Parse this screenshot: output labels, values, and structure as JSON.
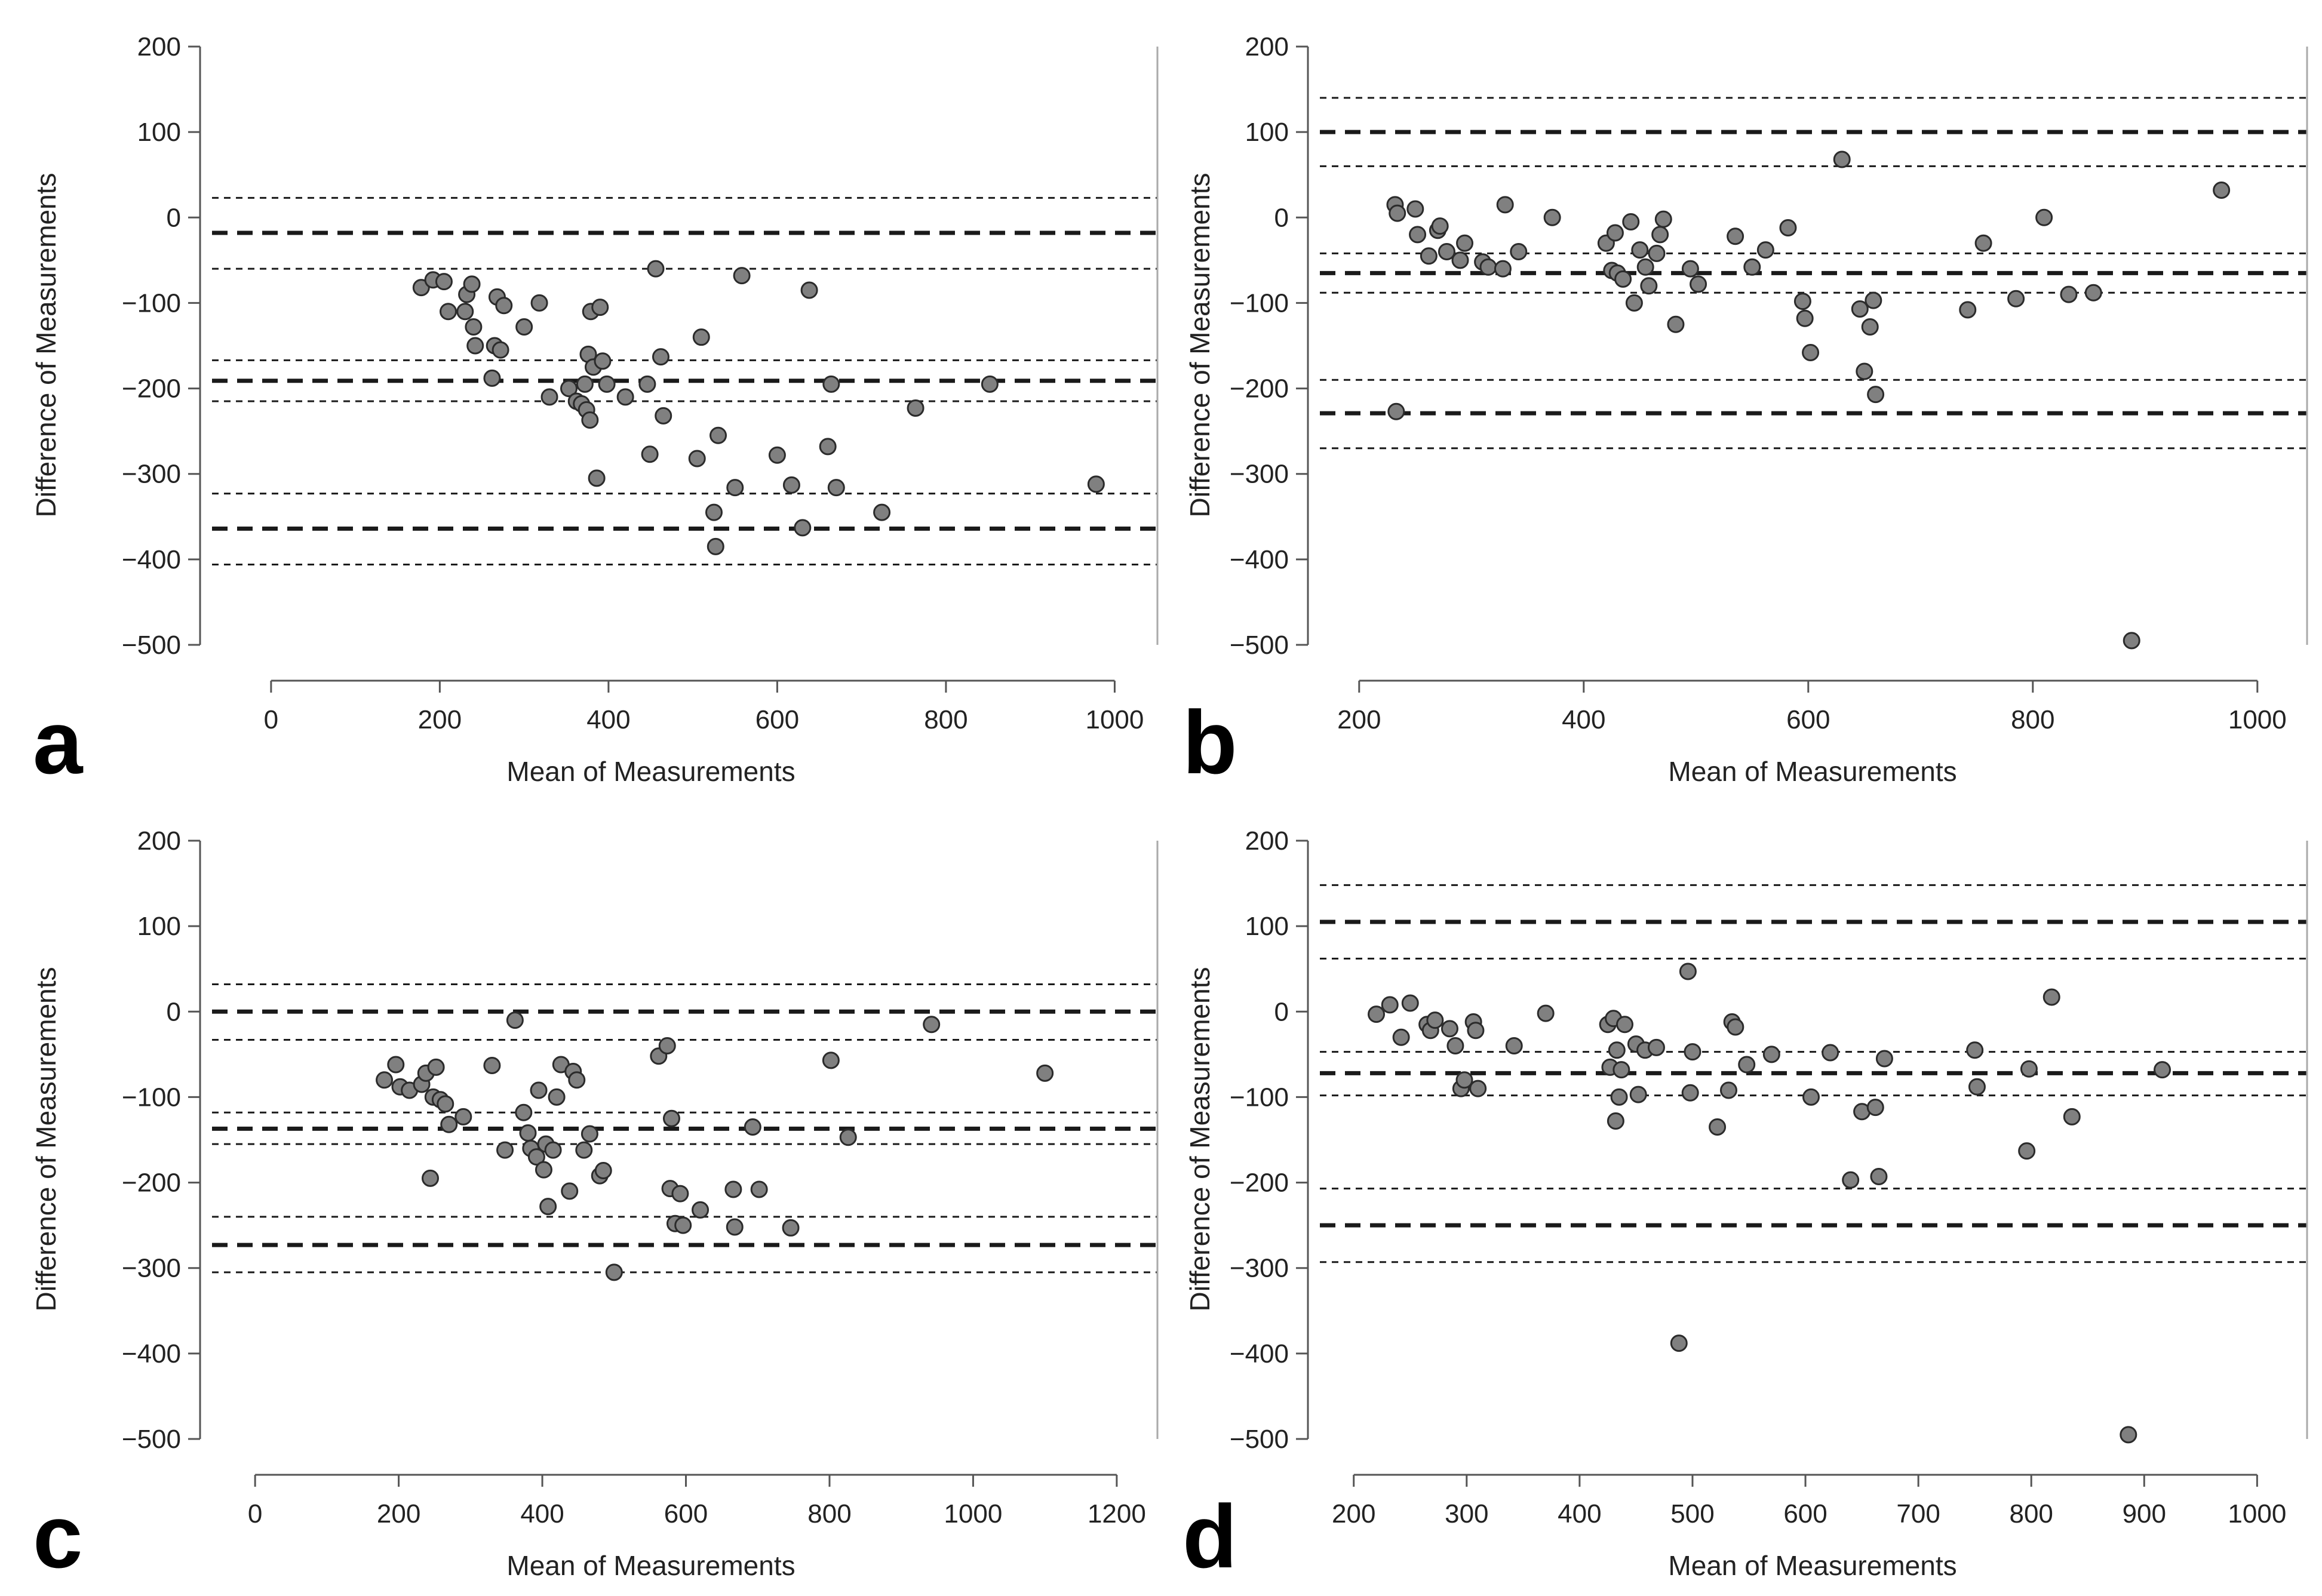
{
  "figure": {
    "background": "#ffffff",
    "point_color": "#808080",
    "line_color": "#1a1a1a"
  },
  "chart_data": [
    {
      "panel": "a",
      "type": "scatter",
      "xlabel": "Mean of Measurements",
      "ylabel": "Difference of Measurements",
      "xlim": [
        -70,
        1045
      ],
      "ylim": [
        -500,
        200
      ],
      "xticks": [
        0,
        200,
        400,
        600,
        800,
        1000
      ],
      "yticks": [
        200,
        100,
        0,
        -100,
        -200,
        -300,
        -400,
        -500
      ],
      "lines": [
        {
          "y": 23,
          "style": "dotted"
        },
        {
          "y": -18,
          "style": "dashed"
        },
        {
          "y": -60,
          "style": "dotted"
        },
        {
          "y": -167,
          "style": "dotted"
        },
        {
          "y": -191,
          "style": "dashed"
        },
        {
          "y": -215,
          "style": "dotted"
        },
        {
          "y": -323,
          "style": "dotted"
        },
        {
          "y": -364,
          "style": "dashed"
        },
        {
          "y": -406,
          "style": "dotted"
        }
      ],
      "points": [
        [
          178,
          -82
        ],
        [
          192,
          -73
        ],
        [
          205,
          -75
        ],
        [
          210,
          -110
        ],
        [
          230,
          -110
        ],
        [
          232,
          -90
        ],
        [
          238,
          -78
        ],
        [
          240,
          -128
        ],
        [
          242,
          -150
        ],
        [
          262,
          -188
        ],
        [
          265,
          -150
        ],
        [
          268,
          -93
        ],
        [
          272,
          -155
        ],
        [
          276,
          -103
        ],
        [
          300,
          -128
        ],
        [
          318,
          -100
        ],
        [
          330,
          -210
        ],
        [
          353,
          -200
        ],
        [
          362,
          -215
        ],
        [
          368,
          -218
        ],
        [
          372,
          -195
        ],
        [
          374,
          -225
        ],
        [
          376,
          -160
        ],
        [
          378,
          -237
        ],
        [
          379,
          -110
        ],
        [
          382,
          -175
        ],
        [
          386,
          -305
        ],
        [
          390,
          -105
        ],
        [
          393,
          -168
        ],
        [
          398,
          -195
        ],
        [
          420,
          -210
        ],
        [
          446,
          -195
        ],
        [
          449,
          -277
        ],
        [
          456,
          -60
        ],
        [
          462,
          -163
        ],
        [
          465,
          -232
        ],
        [
          505,
          -282
        ],
        [
          510,
          -140
        ],
        [
          525,
          -345
        ],
        [
          527,
          -385
        ],
        [
          530,
          -255
        ],
        [
          550,
          -316
        ],
        [
          558,
          -68
        ],
        [
          600,
          -278
        ],
        [
          617,
          -313
        ],
        [
          630,
          -363
        ],
        [
          638,
          -85
        ],
        [
          660,
          -268
        ],
        [
          664,
          -195
        ],
        [
          670,
          -316
        ],
        [
          724,
          -345
        ],
        [
          764,
          -223
        ],
        [
          852,
          -195
        ],
        [
          978,
          -312
        ]
      ]
    },
    {
      "panel": "b",
      "type": "scatter",
      "xlabel": "Mean of Measurements",
      "ylabel": "Difference of Measurements",
      "xlim": [
        165,
        1040
      ],
      "ylim": [
        -500,
        200
      ],
      "xticks": [
        200,
        400,
        600,
        800,
        1000
      ],
      "yticks": [
        200,
        100,
        0,
        -100,
        -200,
        -300,
        -400,
        -500
      ],
      "lines": [
        {
          "y": 140,
          "style": "dotted"
        },
        {
          "y": 100,
          "style": "dashed"
        },
        {
          "y": 60,
          "style": "dotted"
        },
        {
          "y": -42,
          "style": "dotted"
        },
        {
          "y": -65,
          "style": "dashed"
        },
        {
          "y": -88,
          "style": "dotted"
        },
        {
          "y": -190,
          "style": "dotted"
        },
        {
          "y": -229,
          "style": "dashed"
        },
        {
          "y": -270,
          "style": "dotted"
        }
      ],
      "points": [
        [
          232,
          15
        ],
        [
          234,
          5
        ],
        [
          233,
          -227
        ],
        [
          250,
          10
        ],
        [
          252,
          -20
        ],
        [
          262,
          -45
        ],
        [
          270,
          -15
        ],
        [
          272,
          -10
        ],
        [
          278,
          -40
        ],
        [
          290,
          -50
        ],
        [
          294,
          -30
        ],
        [
          310,
          -52
        ],
        [
          315,
          -58
        ],
        [
          330,
          15
        ],
        [
          328,
          -60
        ],
        [
          342,
          -40
        ],
        [
          372,
          0
        ],
        [
          420,
          -30
        ],
        [
          425,
          -62
        ],
        [
          428,
          -18
        ],
        [
          430,
          -65
        ],
        [
          435,
          -72
        ],
        [
          442,
          -5
        ],
        [
          445,
          -100
        ],
        [
          450,
          -38
        ],
        [
          455,
          -58
        ],
        [
          458,
          -80
        ],
        [
          465,
          -42
        ],
        [
          468,
          -20
        ],
        [
          471,
          -2
        ],
        [
          482,
          -125
        ],
        [
          495,
          -60
        ],
        [
          502,
          -78
        ],
        [
          535,
          -22
        ],
        [
          550,
          -58
        ],
        [
          562,
          -38
        ],
        [
          582,
          -12
        ],
        [
          595,
          -98
        ],
        [
          597,
          -118
        ],
        [
          602,
          -158
        ],
        [
          630,
          68
        ],
        [
          646,
          -107
        ],
        [
          650,
          -180
        ],
        [
          655,
          -128
        ],
        [
          658,
          -97
        ],
        [
          660,
          -207
        ],
        [
          742,
          -108
        ],
        [
          756,
          -30
        ],
        [
          785,
          -95
        ],
        [
          810,
          0
        ],
        [
          832,
          -90
        ],
        [
          854,
          -88
        ],
        [
          888,
          -495
        ],
        [
          968,
          32
        ]
      ]
    },
    {
      "panel": "c",
      "type": "scatter",
      "xlabel": "Mean of Measurements",
      "ylabel": "Difference of Measurements",
      "xlim": [
        -60,
        1250
      ],
      "ylim": [
        -500,
        200
      ],
      "xticks": [
        0,
        200,
        400,
        600,
        800,
        1000,
        1200
      ],
      "yticks": [
        200,
        100,
        0,
        -100,
        -200,
        -300,
        -400,
        -500
      ],
      "lines": [
        {
          "y": 32,
          "style": "dotted"
        },
        {
          "y": 0,
          "style": "dashed"
        },
        {
          "y": -33,
          "style": "dotted"
        },
        {
          "y": -118,
          "style": "dotted"
        },
        {
          "y": -137,
          "style": "dashed"
        },
        {
          "y": -155,
          "style": "dotted"
        },
        {
          "y": -240,
          "style": "dotted"
        },
        {
          "y": -273,
          "style": "dashed"
        },
        {
          "y": -305,
          "style": "dotted"
        }
      ],
      "points": [
        [
          180,
          -80
        ],
        [
          196,
          -62
        ],
        [
          202,
          -88
        ],
        [
          215,
          -92
        ],
        [
          232,
          -85
        ],
        [
          238,
          -72
        ],
        [
          244,
          -195
        ],
        [
          248,
          -100
        ],
        [
          252,
          -65
        ],
        [
          258,
          -103
        ],
        [
          265,
          -108
        ],
        [
          270,
          -132
        ],
        [
          290,
          -123
        ],
        [
          330,
          -63
        ],
        [
          348,
          -162
        ],
        [
          362,
          -10
        ],
        [
          374,
          -118
        ],
        [
          380,
          -142
        ],
        [
          384,
          -160
        ],
        [
          392,
          -170
        ],
        [
          395,
          -92
        ],
        [
          402,
          -185
        ],
        [
          405,
          -155
        ],
        [
          408,
          -228
        ],
        [
          415,
          -162
        ],
        [
          420,
          -100
        ],
        [
          426,
          -62
        ],
        [
          438,
          -210
        ],
        [
          443,
          -70
        ],
        [
          448,
          -80
        ],
        [
          458,
          -162
        ],
        [
          466,
          -143
        ],
        [
          480,
          -192
        ],
        [
          485,
          -186
        ],
        [
          500,
          -305
        ],
        [
          562,
          -52
        ],
        [
          574,
          -40
        ],
        [
          578,
          -207
        ],
        [
          580,
          -125
        ],
        [
          585,
          -248
        ],
        [
          592,
          -213
        ],
        [
          596,
          -250
        ],
        [
          620,
          -232
        ],
        [
          666,
          -208
        ],
        [
          668,
          -252
        ],
        [
          693,
          -135
        ],
        [
          702,
          -208
        ],
        [
          746,
          -253
        ],
        [
          802,
          -57
        ],
        [
          826,
          -147
        ],
        [
          942,
          -15
        ],
        [
          1100,
          -72
        ]
      ]
    },
    {
      "panel": "d",
      "type": "scatter",
      "xlabel": "Mean of Measurements",
      "ylabel": "Difference of Measurements",
      "xlim": [
        170,
        1040
      ],
      "ylim": [
        -500,
        200
      ],
      "xticks": [
        200,
        300,
        400,
        500,
        600,
        700,
        800,
        900,
        1000
      ],
      "yticks": [
        200,
        100,
        0,
        -100,
        -200,
        -300,
        -400,
        -500
      ],
      "lines": [
        {
          "y": 148,
          "style": "dotted"
        },
        {
          "y": 105,
          "style": "dashed"
        },
        {
          "y": 62,
          "style": "dotted"
        },
        {
          "y": -47,
          "style": "dotted"
        },
        {
          "y": -72,
          "style": "dashed"
        },
        {
          "y": -98,
          "style": "dotted"
        },
        {
          "y": -207,
          "style": "dotted"
        },
        {
          "y": -250,
          "style": "dashed"
        },
        {
          "y": -293,
          "style": "dotted"
        }
      ],
      "points": [
        [
          220,
          -3
        ],
        [
          232,
          8
        ],
        [
          242,
          -30
        ],
        [
          250,
          10
        ],
        [
          265,
          -15
        ],
        [
          268,
          -22
        ],
        [
          272,
          -10
        ],
        [
          285,
          -20
        ],
        [
          290,
          -40
        ],
        [
          295,
          -90
        ],
        [
          298,
          -80
        ],
        [
          306,
          -12
        ],
        [
          308,
          -22
        ],
        [
          310,
          -90
        ],
        [
          342,
          -40
        ],
        [
          370,
          -2
        ],
        [
          425,
          -15
        ],
        [
          427,
          -65
        ],
        [
          430,
          -8
        ],
        [
          432,
          -128
        ],
        [
          433,
          -45
        ],
        [
          435,
          -100
        ],
        [
          437,
          -68
        ],
        [
          440,
          -15
        ],
        [
          450,
          -38
        ],
        [
          452,
          -97
        ],
        [
          458,
          -45
        ],
        [
          468,
          -42
        ],
        [
          488,
          -388
        ],
        [
          496,
          47
        ],
        [
          498,
          -95
        ],
        [
          500,
          -47
        ],
        [
          522,
          -135
        ],
        [
          532,
          -92
        ],
        [
          535,
          -12
        ],
        [
          538,
          -18
        ],
        [
          548,
          -62
        ],
        [
          570,
          -50
        ],
        [
          605,
          -100
        ],
        [
          622,
          -48
        ],
        [
          640,
          -197
        ],
        [
          650,
          -117
        ],
        [
          662,
          -112
        ],
        [
          665,
          -193
        ],
        [
          670,
          -55
        ],
        [
          750,
          -45
        ],
        [
          752,
          -88
        ],
        [
          796,
          -163
        ],
        [
          798,
          -67
        ],
        [
          818,
          17
        ],
        [
          836,
          -123
        ],
        [
          886,
          -495
        ],
        [
          916,
          -68
        ]
      ]
    }
  ]
}
